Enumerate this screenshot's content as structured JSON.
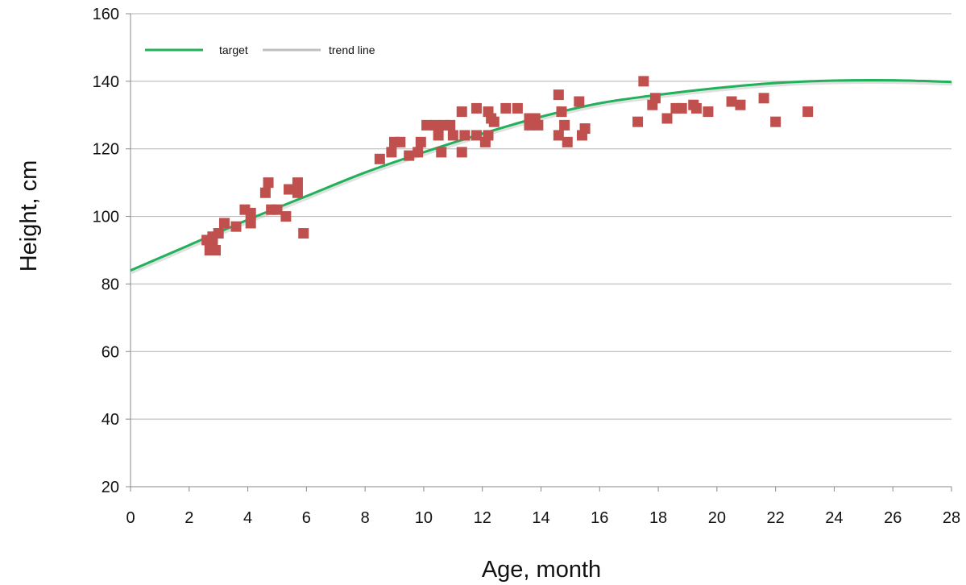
{
  "chart_data": {
    "type": "scatter",
    "title": "",
    "xlabel": "Age, month",
    "ylabel": "Height, cm",
    "xlim": [
      0,
      28
    ],
    "ylim": [
      20,
      160
    ],
    "xticks": [
      "0",
      "2",
      "4",
      "6",
      "8",
      "10",
      "12",
      "14",
      "16",
      "18",
      "20",
      "22",
      "24",
      "26",
      "28"
    ],
    "yticks": [
      "20",
      "40",
      "60",
      "80",
      "100",
      "120",
      "140",
      "160"
    ],
    "grid": "horizontal",
    "legend_position": "top-left",
    "legend": [
      {
        "label": "target",
        "color": "#22b05a"
      },
      {
        "label": "trend line",
        "color": "#bfbfbf"
      }
    ],
    "series": [
      {
        "color": "#c0504d",
        "marker": "square",
        "points": [
          [
            2.6,
            93
          ],
          [
            2.7,
            90
          ],
          [
            2.8,
            94
          ],
          [
            2.8,
            92
          ],
          [
            2.9,
            90
          ],
          [
            3.0,
            95
          ],
          [
            3.2,
            98
          ],
          [
            3.6,
            97
          ],
          [
            3.9,
            102
          ],
          [
            4.1,
            98
          ],
          [
            4.1,
            101
          ],
          [
            4.6,
            107
          ],
          [
            4.7,
            110
          ],
          [
            4.8,
            102
          ],
          [
            5.0,
            102
          ],
          [
            5.3,
            100
          ],
          [
            5.4,
            108
          ],
          [
            5.7,
            107
          ],
          [
            5.7,
            110
          ],
          [
            5.9,
            95
          ],
          [
            8.5,
            117
          ],
          [
            8.9,
            119
          ],
          [
            9.0,
            122
          ],
          [
            9.2,
            122
          ],
          [
            9.5,
            118
          ],
          [
            9.8,
            119
          ],
          [
            9.9,
            122
          ],
          [
            10.1,
            127
          ],
          [
            10.4,
            127
          ],
          [
            10.5,
            124
          ],
          [
            10.6,
            119
          ],
          [
            10.7,
            127
          ],
          [
            10.9,
            127
          ],
          [
            11.0,
            124
          ],
          [
            11.3,
            119
          ],
          [
            11.3,
            131
          ],
          [
            11.4,
            124
          ],
          [
            11.8,
            132
          ],
          [
            11.8,
            124
          ],
          [
            12.1,
            122
          ],
          [
            12.2,
            124
          ],
          [
            12.2,
            131
          ],
          [
            12.3,
            129
          ],
          [
            12.4,
            128
          ],
          [
            12.8,
            132
          ],
          [
            13.2,
            132
          ],
          [
            13.6,
            127
          ],
          [
            13.6,
            129
          ],
          [
            13.8,
            129
          ],
          [
            13.9,
            127
          ],
          [
            14.6,
            136
          ],
          [
            14.6,
            124
          ],
          [
            14.7,
            131
          ],
          [
            14.8,
            127
          ],
          [
            14.9,
            122
          ],
          [
            15.3,
            134
          ],
          [
            15.4,
            124
          ],
          [
            15.5,
            126
          ],
          [
            17.3,
            128
          ],
          [
            17.5,
            140
          ],
          [
            17.8,
            133
          ],
          [
            17.9,
            135
          ],
          [
            18.3,
            129
          ],
          [
            18.6,
            132
          ],
          [
            18.8,
            132
          ],
          [
            19.2,
            133
          ],
          [
            19.3,
            132
          ],
          [
            19.7,
            131
          ],
          [
            20.5,
            134
          ],
          [
            20.8,
            133
          ],
          [
            21.6,
            135
          ],
          [
            22.0,
            128
          ],
          [
            23.1,
            131
          ]
        ]
      }
    ],
    "target_curve": {
      "name": "target",
      "color": "#22b05a",
      "points": [
        [
          0,
          84
        ],
        [
          2,
          91.5
        ],
        [
          4,
          99
        ],
        [
          6,
          106
        ],
        [
          8,
          113
        ],
        [
          10,
          119
        ],
        [
          12,
          124.5
        ],
        [
          14,
          129.5
        ],
        [
          16,
          133.5
        ],
        [
          18,
          136
        ],
        [
          20,
          138
        ],
        [
          22,
          139.5
        ],
        [
          24,
          140.2
        ],
        [
          26,
          140.3
        ],
        [
          28,
          139.8
        ]
      ]
    }
  }
}
